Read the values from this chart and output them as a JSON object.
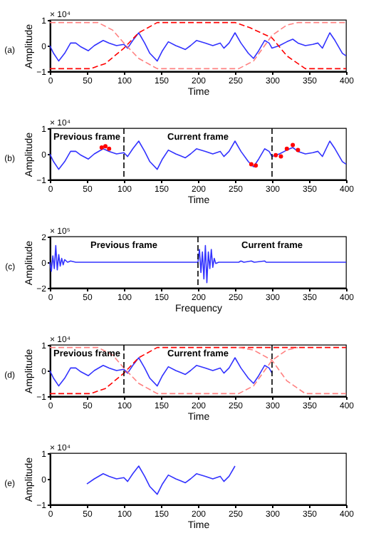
{
  "chart_data": [
    {
      "type": "line",
      "title": "(a)",
      "xlabel": "Time",
      "ylabel": "Amplitude",
      "annotations": [
        "× 10⁴"
      ],
      "xlim": [
        0,
        400
      ],
      "xticks": [
        0,
        50,
        100,
        150,
        200,
        250,
        300,
        350,
        400
      ],
      "ylim": [
        -1,
        1
      ],
      "yticks": [
        -1,
        0,
        1
      ],
      "series": [
        {
          "color": "#3333ff",
          "x": [
            0,
            5,
            12,
            20,
            28,
            35,
            42,
            52,
            60,
            72,
            80,
            90,
            100,
            105,
            112,
            120,
            128,
            135,
            145,
            152,
            160,
            170,
            183,
            190,
            198,
            210,
            220,
            230,
            235,
            242,
            250,
            258,
            268,
            275,
            282,
            290,
            296,
            300,
            310,
            320,
            328,
            335,
            345,
            355,
            362,
            368,
            378,
            385,
            395,
            400
          ],
          "values": [
            0,
            -0.3,
            -0.6,
            -0.3,
            0.1,
            0.1,
            -0.05,
            -0.2,
            0,
            0.2,
            0.1,
            0,
            0.05,
            -0.1,
            0.2,
            0.5,
            0.1,
            -0.3,
            -0.6,
            -0.2,
            0.15,
            0,
            -0.15,
            0,
            0.2,
            0.1,
            0,
            0.1,
            -0.1,
            0.1,
            0.5,
            0.1,
            -0.3,
            -0.5,
            -0.2,
            0.2,
            0.1,
            -0.1,
            0,
            0.15,
            0.25,
            0.1,
            0,
            0.05,
            0.1,
            -0.1,
            0.5,
            0.2,
            -0.3,
            -0.4
          ]
        },
        {
          "color": "#ff0000",
          "line_style": "dashed",
          "x": [
            0,
            55,
            75,
            100,
            120,
            145,
            250,
            270,
            300,
            320,
            345,
            400
          ],
          "values": [
            -0.9,
            -0.9,
            -0.7,
            -0.1,
            0.5,
            0.9,
            0.9,
            0.7,
            0.3,
            -0.4,
            -0.9,
            -0.9
          ]
        },
        {
          "color": "#ff8080",
          "line_style": "dashed",
          "x": [
            0,
            65,
            85,
            100,
            120,
            145,
            255,
            275,
            300,
            320,
            335,
            400
          ],
          "values": [
            0.9,
            0.9,
            0.6,
            0.1,
            -0.5,
            -0.9,
            -0.9,
            -0.6,
            0.4,
            0.8,
            0.9,
            0.9
          ]
        }
      ]
    },
    {
      "type": "line",
      "title": "(b)",
      "xlabel": "Time",
      "ylabel": "Amplitude",
      "annotations": [
        "× 10⁴",
        "Previous frame",
        "Current frame"
      ],
      "xlim": [
        0,
        400
      ],
      "xticks": [
        0,
        50,
        100,
        150,
        200,
        250,
        300,
        350,
        400
      ],
      "ylim": [
        -1,
        1
      ],
      "yticks": [
        -1,
        0,
        1
      ],
      "ref_lines": [
        {
          "axis": "x",
          "value": 100,
          "color": "#000000",
          "line_style": "dashed"
        },
        {
          "axis": "x",
          "value": 300,
          "color": "#000000",
          "line_style": "dashed"
        }
      ],
      "series": [
        {
          "color": "#3333ff",
          "x": [
            0,
            5,
            12,
            20,
            28,
            35,
            42,
            52,
            60,
            72,
            80,
            90,
            100,
            105,
            112,
            120,
            128,
            135,
            145,
            152,
            160,
            170,
            183,
            190,
            198,
            210,
            220,
            230,
            235,
            242,
            250,
            258,
            268,
            275,
            282,
            290,
            296,
            300,
            310,
            320,
            328,
            335,
            345,
            355,
            362,
            368,
            378,
            385,
            395,
            400
          ],
          "values": [
            0,
            -0.3,
            -0.6,
            -0.3,
            0.1,
            0.1,
            -0.05,
            -0.2,
            0,
            0.2,
            0.1,
            0,
            0.05,
            -0.1,
            0.2,
            0.5,
            0.1,
            -0.3,
            -0.6,
            -0.2,
            0.15,
            0,
            -0.15,
            0,
            0.2,
            0.1,
            0,
            0.1,
            -0.1,
            0.1,
            0.5,
            0.1,
            -0.3,
            -0.5,
            -0.2,
            0.2,
            0.1,
            -0.1,
            0,
            0.15,
            0.25,
            0.1,
            0,
            0.05,
            0.1,
            -0.1,
            0.5,
            0.2,
            -0.3,
            -0.4
          ]
        },
        {
          "type": "scatter",
          "color": "#ff0000",
          "x": [
            70,
            75,
            80,
            272,
            278,
            305,
            312,
            320,
            328,
            335
          ],
          "values": [
            0.25,
            0.3,
            0.2,
            -0.4,
            -0.45,
            -0.05,
            -0.1,
            0.2,
            0.35,
            0.15
          ]
        }
      ]
    },
    {
      "type": "line",
      "title": "(c)",
      "xlabel": "Frequency",
      "ylabel": "Amplitude",
      "annotations": [
        "× 10⁵",
        "Previous frame",
        "Current frame"
      ],
      "xlim": [
        0,
        400
      ],
      "xticks": [
        0,
        50,
        100,
        150,
        200,
        250,
        300,
        350,
        400
      ],
      "ylim": [
        -2,
        2
      ],
      "yticks": [
        -2,
        0,
        2
      ],
      "ref_lines": [
        {
          "axis": "x",
          "value": 200,
          "color": "#000000",
          "line_style": "dashed"
        }
      ],
      "series": [
        {
          "color": "#3333ff",
          "x": [
            0,
            2,
            4,
            6,
            8,
            10,
            12,
            14,
            16,
            18,
            20,
            24,
            28,
            35,
            200,
            202,
            204,
            206,
            208,
            210,
            212,
            214,
            216,
            218,
            220,
            222,
            224,
            228,
            255,
            258,
            262,
            272,
            276,
            290,
            292,
            400
          ],
          "values": [
            0,
            -0.7,
            0.5,
            -0.5,
            1.3,
            -0.6,
            0.6,
            -0.3,
            0.3,
            -0.2,
            0.2,
            0,
            0.1,
            0,
            0,
            1,
            -0.8,
            0.8,
            -1.3,
            1.3,
            -1.6,
            0.8,
            -0.5,
            1,
            -0.4,
            0.3,
            -0.1,
            0,
            0,
            0.1,
            0,
            0.1,
            0,
            0.1,
            0,
            0
          ]
        }
      ]
    },
    {
      "type": "line",
      "title": "(d)",
      "xlabel": "Time",
      "ylabel": "Amplitude",
      "annotations": [
        "× 10⁴",
        "Previous frame",
        "Current frame"
      ],
      "xlim": [
        0,
        400
      ],
      "xticks": [
        0,
        50,
        100,
        150,
        200,
        250,
        300,
        350,
        400
      ],
      "ylim": [
        -1,
        1
      ],
      "yticks": [
        -1,
        0,
        1
      ],
      "ref_lines": [
        {
          "axis": "x",
          "value": 100,
          "color": "#000000",
          "line_style": "dashed"
        },
        {
          "axis": "x",
          "value": 300,
          "color": "#000000",
          "line_style": "dashed"
        }
      ],
      "series": [
        {
          "color": "#3333ff",
          "x": [
            0,
            5,
            12,
            20,
            28,
            35,
            42,
            52,
            60,
            72,
            80,
            90,
            100,
            105,
            112,
            120,
            128,
            135,
            145,
            152,
            160,
            170,
            183,
            190,
            198,
            210,
            220,
            230,
            235,
            242,
            250,
            258,
            268,
            275,
            282,
            290,
            296,
            300
          ],
          "values": [
            0,
            -0.3,
            -0.6,
            -0.3,
            0.1,
            0.1,
            -0.05,
            -0.2,
            0,
            0.2,
            0.1,
            0,
            0.05,
            -0.1,
            0.2,
            0.5,
            0.1,
            -0.3,
            -0.6,
            -0.2,
            0.15,
            0,
            -0.15,
            0,
            0.2,
            0.1,
            0,
            0.1,
            -0.1,
            0.1,
            0.5,
            0.1,
            -0.3,
            -0.5,
            -0.2,
            0.2,
            0.1,
            -0.1
          ]
        },
        {
          "color": "#ff0000",
          "line_style": "dashed",
          "x": [
            0,
            55,
            75,
            100,
            120,
            145,
            400
          ],
          "values": [
            -0.9,
            -0.9,
            -0.7,
            -0.1,
            0.5,
            0.9,
            0.9
          ]
        },
        {
          "color": "#ff8080",
          "line_style": "dashed",
          "x": [
            0,
            65,
            85,
            100,
            120,
            145,
            255,
            275,
            300,
            320,
            335
          ],
          "values": [
            0.9,
            0.9,
            0.6,
            0.1,
            -0.5,
            -0.9,
            -0.9,
            -0.6,
            0.4,
            0.8,
            0.9
          ]
        },
        {
          "color": "#ff8080",
          "line_style": "dashed",
          "x": [
            255,
            275,
            300,
            320,
            345,
            400
          ],
          "values": [
            0.9,
            0.8,
            0.4,
            -0.4,
            -0.9,
            -0.9
          ]
        }
      ]
    },
    {
      "type": "line",
      "title": "(e)",
      "xlabel": "Time",
      "ylabel": "Amplitude",
      "annotations": [
        "× 10⁴"
      ],
      "xlim": [
        0,
        400
      ],
      "xticks": [
        0,
        50,
        100,
        150,
        200,
        250,
        300,
        350,
        400
      ],
      "ylim": [
        -1,
        1
      ],
      "yticks": [
        -1,
        0,
        1
      ],
      "series": [
        {
          "color": "#3333ff",
          "x": [
            50,
            60,
            72,
            80,
            90,
            100,
            105,
            112,
            120,
            128,
            135,
            145,
            152,
            160,
            170,
            183,
            190,
            198,
            210,
            220,
            230,
            235,
            242,
            250
          ],
          "values": [
            -0.2,
            0,
            0.2,
            0.1,
            0,
            0.05,
            -0.1,
            0.2,
            0.5,
            0.1,
            -0.3,
            -0.6,
            -0.2,
            0.15,
            0,
            -0.15,
            0,
            0.2,
            0.1,
            0,
            0.1,
            -0.1,
            0.1,
            0.5
          ]
        }
      ]
    }
  ]
}
